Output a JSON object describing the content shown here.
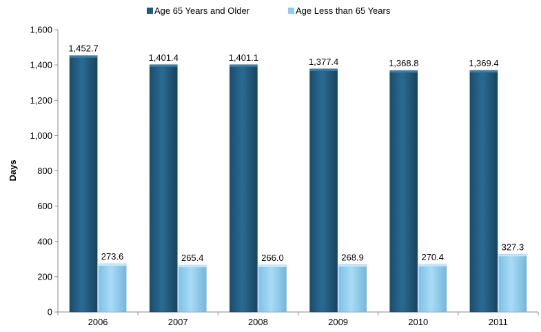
{
  "chart_data": {
    "type": "bar",
    "title": "",
    "xlabel": "",
    "ylabel": "Days",
    "ylim": [
      0,
      1600
    ],
    "ytick_step": 200,
    "categories": [
      "2006",
      "2007",
      "2008",
      "2009",
      "2010",
      "2011"
    ],
    "series": [
      {
        "name": "Age 65 Years and Older",
        "values": [
          1452.7,
          1401.4,
          1401.1,
          1377.4,
          1368.8,
          1369.4
        ],
        "labels": [
          "1,452.7",
          "1,401.4",
          "1,401.1",
          "1,377.4",
          "1,368.8",
          "1,369.4"
        ],
        "color": "#1f5a80"
      },
      {
        "name": "Age Less than 65 Years",
        "values": [
          273.6,
          265.4,
          266.0,
          268.9,
          270.4,
          327.3
        ],
        "labels": [
          "273.6",
          "265.4",
          "266.0",
          "268.9",
          "270.4",
          "327.3"
        ],
        "color": "#8ecdef"
      }
    ],
    "yticks": [
      "0",
      "200",
      "400",
      "600",
      "800",
      "1,000",
      "1,200",
      "1,400",
      "1,600"
    ],
    "legend_position": "top",
    "grid": false
  }
}
